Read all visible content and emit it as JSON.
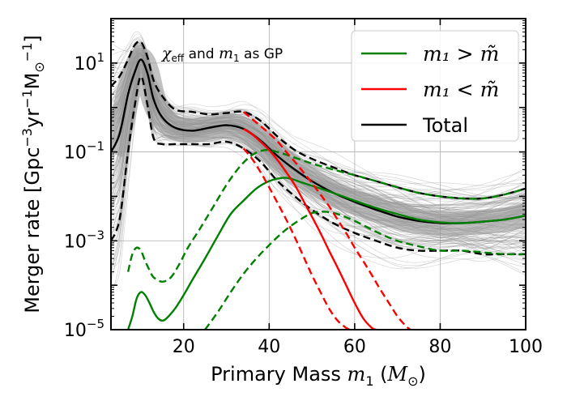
{
  "chart_data": {
    "type": "line",
    "xlabel": "Primary Mass m_1 (M_⊙)",
    "ylabel": "Merger rate [Gpc^-3 yr^-1 M_⊙^-1]",
    "xlim": [
      3,
      100
    ],
    "ylim": [
      1e-05,
      100
    ],
    "yscale": "log",
    "grid": true,
    "legend_position": "top-right",
    "x_ticks": [
      20,
      40,
      60,
      80,
      100
    ],
    "y_ticks": [
      1e-05,
      0.001,
      0.1,
      10
    ],
    "x_tick_labels": [
      "20",
      "40",
      "60",
      "80",
      "100"
    ],
    "y_tick_labels": [
      {
        "base": "10",
        "exp": "−5"
      },
      {
        "base": "10",
        "exp": "−3"
      },
      {
        "base": "10",
        "exp": "−1"
      },
      {
        "base": "10",
        "exp": "1"
      }
    ],
    "annotation": {
      "prefix": "χ",
      "sub": "eff",
      "middle": " and ",
      "var": "m",
      "var_sub": "1",
      "suffix": " as GP"
    },
    "legend": [
      {
        "label": "m₁ > m̃",
        "color": "#008000"
      },
      {
        "label": "m₁ < m̃",
        "color": "#ff0000"
      },
      {
        "label": "Total",
        "color": "#000000"
      }
    ],
    "series": [
      {
        "name": "Total",
        "color": "#000000",
        "style": "solid",
        "x": [
          3,
          5,
          7,
          8.5,
          10,
          11.5,
          13,
          15,
          18,
          22,
          26,
          30,
          34,
          38,
          42,
          46,
          50,
          55,
          60,
          65,
          70,
          75,
          80,
          85,
          90,
          95,
          100
        ],
        "y": [
          0.1,
          0.25,
          2,
          6,
          12,
          6,
          1.5,
          0.6,
          0.35,
          0.3,
          0.35,
          0.4,
          0.33,
          0.18,
          0.08,
          0.04,
          0.022,
          0.012,
          0.0075,
          0.005,
          0.0035,
          0.0028,
          0.0025,
          0.0025,
          0.0027,
          0.003,
          0.0037
        ]
      },
      {
        "name": "",
        "color": "#000000",
        "style": "dashed",
        "x": [
          3,
          5,
          7,
          8.5,
          10,
          11.5,
          13,
          15,
          18,
          22,
          26,
          30,
          34,
          38,
          42,
          46,
          50,
          55,
          60,
          65,
          70,
          75,
          80,
          85,
          90,
          95,
          100
        ],
        "y": [
          3,
          5,
          12,
          25,
          30,
          14,
          4,
          1.8,
          0.9,
          0.8,
          0.7,
          0.75,
          0.8,
          0.5,
          0.22,
          0.11,
          0.07,
          0.045,
          0.03,
          0.022,
          0.016,
          0.012,
          0.01,
          0.009,
          0.009,
          0.011,
          0.015
        ]
      },
      {
        "name": "",
        "color": "#000000",
        "style": "dashed",
        "x": [
          3,
          5,
          7,
          8.5,
          10,
          11.5,
          13,
          15,
          18,
          22,
          26,
          30,
          34,
          38,
          42,
          46,
          50,
          55,
          60,
          65,
          70,
          75,
          80,
          85,
          90,
          95,
          100
        ],
        "y": [
          0.001,
          0.003,
          0.1,
          1,
          5,
          1.2,
          0.2,
          0.15,
          0.15,
          0.15,
          0.15,
          0.17,
          0.12,
          0.06,
          0.022,
          0.01,
          0.005,
          0.0025,
          0.0015,
          0.001,
          0.0007,
          0.0006,
          0.0006,
          0.0006,
          0.0005,
          0.0005,
          0.0005
        ]
      },
      {
        "name": "",
        "color": "#008000",
        "style": "solid",
        "x": [
          7,
          8,
          9,
          10,
          11,
          12,
          13,
          14,
          15,
          16,
          18,
          20,
          22,
          25,
          28,
          31,
          34,
          37,
          40,
          43,
          45,
          48,
          52,
          56,
          60,
          65,
          70,
          75,
          80,
          85,
          90,
          95,
          100
        ],
        "y": [
          1e-05,
          2e-05,
          5e-05,
          7e-05,
          6e-05,
          4e-05,
          2.5e-05,
          1.8e-05,
          1.6e-05,
          1.8e-05,
          3e-05,
          6e-05,
          0.00013,
          0.0004,
          0.0013,
          0.004,
          0.008,
          0.015,
          0.022,
          0.026,
          0.025,
          0.02,
          0.015,
          0.011,
          0.008,
          0.0055,
          0.004,
          0.003,
          0.0026,
          0.0025,
          0.0027,
          0.003,
          0.0037
        ]
      },
      {
        "name": "",
        "color": "#008000",
        "style": "dashed",
        "x": [
          7,
          8,
          9,
          10,
          11,
          12,
          13,
          15,
          17,
          19,
          21,
          24,
          27,
          30,
          33,
          36,
          39,
          42,
          45,
          50,
          55,
          60,
          65,
          70,
          75,
          80,
          85,
          90,
          95,
          100
        ],
        "y": [
          0.0002,
          0.0005,
          0.0007,
          0.0006,
          0.00035,
          0.00022,
          0.00015,
          0.00012,
          0.00015,
          0.0003,
          0.0007,
          0.002,
          0.006,
          0.018,
          0.045,
          0.085,
          0.11,
          0.1,
          0.08,
          0.055,
          0.04,
          0.03,
          0.022,
          0.016,
          0.012,
          0.01,
          0.009,
          0.009,
          0.011,
          0.015
        ]
      },
      {
        "name": "",
        "color": "#008000",
        "style": "dashed",
        "x": [
          25,
          28,
          31,
          34,
          37,
          40,
          43,
          46,
          50,
          53,
          56,
          60,
          65,
          70,
          75,
          80,
          85,
          90,
          95,
          100
        ],
        "y": [
          1e-05,
          2.5e-05,
          7e-05,
          0.00018,
          0.0004,
          0.0008,
          0.0015,
          0.0025,
          0.0042,
          0.0045,
          0.004,
          0.0028,
          0.0016,
          0.001,
          0.00075,
          0.0006,
          0.0006,
          0.00055,
          0.0005,
          0.0005
        ]
      },
      {
        "name": "",
        "color": "#ff0000",
        "style": "solid",
        "x": [
          34,
          36,
          38,
          40,
          42,
          44,
          46,
          48,
          50,
          52,
          54,
          56,
          58,
          60,
          62,
          64,
          65
        ],
        "y": [
          0.33,
          0.25,
          0.17,
          0.11,
          0.065,
          0.035,
          0.018,
          0.008,
          0.0035,
          0.0015,
          0.0006,
          0.00025,
          0.0001,
          4e-05,
          1.8e-05,
          1.1e-05,
          1e-05
        ]
      },
      {
        "name": "",
        "color": "#ff0000",
        "style": "dashed",
        "x": [
          34,
          36,
          38,
          40,
          42,
          44,
          46,
          48,
          50,
          52,
          54,
          56,
          58,
          60,
          62,
          64,
          66,
          68,
          70,
          72,
          73
        ],
        "y": [
          0.8,
          0.55,
          0.38,
          0.26,
          0.17,
          0.1,
          0.06,
          0.035,
          0.02,
          0.011,
          0.006,
          0.003,
          0.0015,
          0.0007,
          0.00035,
          0.00017,
          8e-05,
          4e-05,
          2e-05,
          1.2e-05,
          1e-05
        ]
      },
      {
        "name": "",
        "color": "#ff0000",
        "style": "dashed",
        "x": [
          34,
          36,
          38,
          40,
          42,
          44,
          46,
          48,
          50,
          52,
          54,
          56,
          58,
          59
        ],
        "y": [
          0.12,
          0.07,
          0.035,
          0.016,
          0.007,
          0.003,
          0.0012,
          0.00045,
          0.00017,
          7e-05,
          3e-05,
          1.6e-05,
          1.1e-05,
          1e-05
        ]
      }
    ]
  }
}
